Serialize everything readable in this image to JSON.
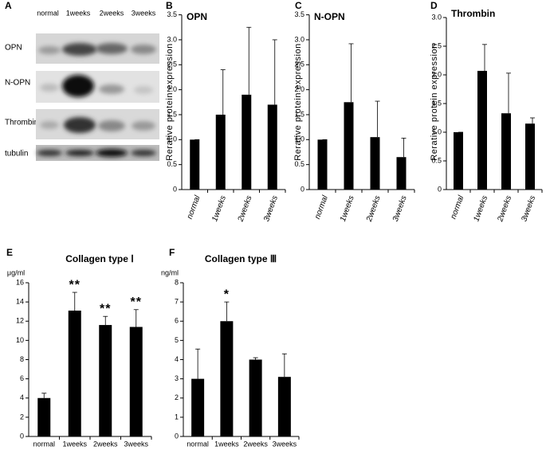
{
  "blot": {
    "panel": "A",
    "lanes": [
      "normal",
      "1weeks",
      "2weeks",
      "3weeks"
    ],
    "rows": [
      "OPN",
      "N-OPN",
      "Thrombin",
      "tubulin"
    ]
  },
  "chart_data": [
    {
      "type": "bar",
      "panel": "B",
      "title": "OPN",
      "y_label": "Rerative protein expression",
      "categories": [
        "normal",
        "1weeks",
        "2weeks",
        "3weeks"
      ],
      "values": [
        1.0,
        1.5,
        1.9,
        1.7
      ],
      "errors": [
        0,
        0.9,
        1.35,
        1.3
      ],
      "color": "#000000",
      "ylim": [
        0,
        3.5
      ],
      "yticks": [
        0,
        0.5,
        {
          "value": 1,
          "label": "1.0"
        },
        1.5,
        {
          "value": 2,
          "label": "2.0"
        },
        2.5,
        {
          "value": 3,
          "label": "3.0"
        },
        3.5
      ]
    },
    {
      "type": "bar",
      "panel": "C",
      "title": "N-OPN",
      "y_label": "Rerative protein expression",
      "categories": [
        "normal",
        "1weeks",
        "2weeks",
        "3weeks"
      ],
      "values": [
        1.0,
        1.75,
        1.05,
        0.65
      ],
      "errors": [
        0,
        1.17,
        0.72,
        0.38
      ],
      "color": "#000000",
      "ylim": [
        0,
        3.5
      ],
      "yticks": [
        0,
        0.5,
        {
          "value": 1,
          "label": "1.0"
        },
        1.5,
        {
          "value": 2,
          "label": "2.0"
        },
        2.5,
        {
          "value": 3,
          "label": "3.0"
        },
        3.5
      ]
    },
    {
      "type": "bar",
      "panel": "D",
      "title": "Thrombin",
      "y_label": "Rerative protein expression",
      "categories": [
        "normal",
        "1weeks",
        "2weeks",
        "3weeks"
      ],
      "values": [
        1.0,
        2.07,
        1.33,
        1.15
      ],
      "errors": [
        0,
        0.46,
        0.7,
        0.1
      ],
      "color": "#000000",
      "ylim": [
        0,
        3
      ],
      "yticks": [
        0,
        0.5,
        {
          "value": 1,
          "label": "1.0"
        },
        1.5,
        {
          "value": 2,
          "label": "2.0"
        },
        2.5,
        {
          "value": 3,
          "label": "3.0"
        }
      ]
    },
    {
      "type": "bar",
      "panel": "E",
      "title": "Collagen type Ⅰ",
      "unit": "μg/ml",
      "categories": [
        "normal",
        "1weeks",
        "2weeks",
        "3weeks"
      ],
      "values": [
        4,
        13.1,
        11.6,
        11.4
      ],
      "errors": [
        0.5,
        1.9,
        0.9,
        1.8
      ],
      "annotations": [
        null,
        "**",
        "**",
        "**"
      ],
      "color": "#000000",
      "ylim": [
        0,
        16
      ],
      "yticks": [
        0,
        2,
        4,
        6,
        8,
        10,
        12,
        14,
        16
      ]
    },
    {
      "type": "bar",
      "panel": "F",
      "title": "Collagen type Ⅲ",
      "unit": "ng/ml",
      "categories": [
        "normal",
        "1weeks",
        "2weeks",
        "3weeks"
      ],
      "values": [
        3.0,
        6.0,
        4.0,
        3.1
      ],
      "errors": [
        1.55,
        1.0,
        0.1,
        1.2
      ],
      "annotations": [
        null,
        "*",
        null,
        null
      ],
      "color": "#000000",
      "ylim": [
        0,
        8
      ],
      "yticks": [
        0,
        1,
        2,
        3,
        4,
        5,
        6,
        7,
        8
      ]
    }
  ]
}
